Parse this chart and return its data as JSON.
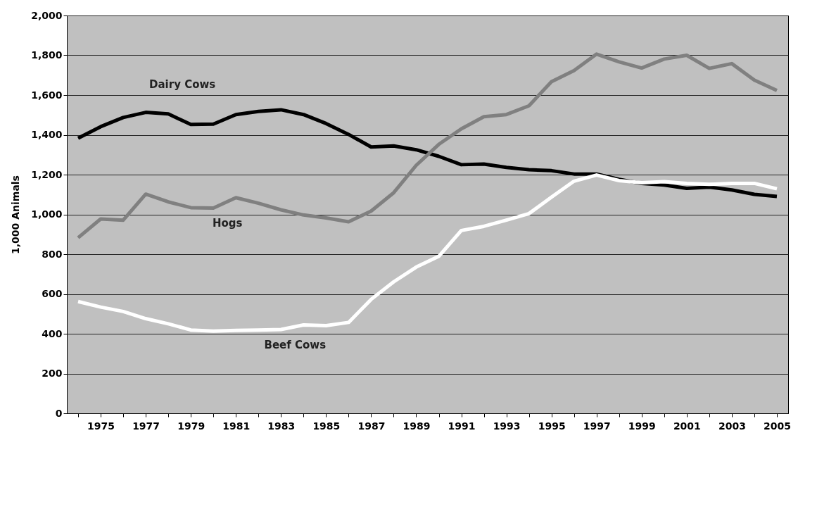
{
  "chart_data": {
    "type": "line",
    "ylabel": "1,000 Animals",
    "categories": [
      null,
      "1975",
      null,
      "1977",
      null,
      "1979",
      null,
      "1981",
      null,
      "1983",
      null,
      "1985",
      null,
      "1987",
      null,
      "1989",
      null,
      "1991",
      null,
      "1993",
      null,
      "1995",
      null,
      "1997",
      null,
      "1999",
      null,
      "2001",
      null,
      "2003",
      null,
      "2005"
    ],
    "series": [
      {
        "name": "Dairy Cows",
        "color": "#000000",
        "values": [
          1383,
          1441,
          1487,
          1513,
          1505,
          1452,
          1454,
          1502,
          1518,
          1526,
          1502,
          1457,
          1402,
          1339,
          1344,
          1325,
          1292,
          1250,
          1253,
          1236,
          1225,
          1220,
          1203,
          1203,
          1176,
          1156,
          1148,
          1131,
          1137,
          1123,
          1101,
          1090
        ]
      },
      {
        "name": "Hogs",
        "color": "#808080",
        "values": [
          883,
          977,
          971,
          1102,
          1063,
          1034,
          1032,
          1084,
          1056,
          1023,
          997,
          982,
          963,
          1017,
          1109,
          1247,
          1352,
          1430,
          1491,
          1502,
          1546,
          1667,
          1723,
          1806,
          1767,
          1736,
          1781,
          1800,
          1734,
          1758,
          1675,
          1623
        ]
      },
      {
        "name": "Beef Cows",
        "color": "#ffffff",
        "values": [
          562,
          534,
          512,
          476,
          450,
          419,
          413,
          417,
          419,
          421,
          444,
          441,
          457,
          573,
          661,
          735,
          789,
          919,
          940,
          971,
          1004,
          1087,
          1167,
          1198,
          1170,
          1159,
          1165,
          1156,
          1151,
          1156,
          1156,
          1129
        ]
      }
    ],
    "ylim": [
      0,
      2000
    ],
    "yticks": [
      0,
      200,
      400,
      600,
      800,
      {
        "value": 1000,
        "label": "1,000"
      },
      {
        "value": 1200,
        "label": "1,200"
      },
      {
        "value": 1400,
        "label": "1,400"
      },
      {
        "value": 1600,
        "label": "1,600"
      },
      {
        "value": 1800,
        "label": "1,800"
      },
      {
        "value": 2000,
        "label": "2,000"
      }
    ],
    "grid": "y",
    "legend": false,
    "marker": "none",
    "line_style": "solid"
  }
}
